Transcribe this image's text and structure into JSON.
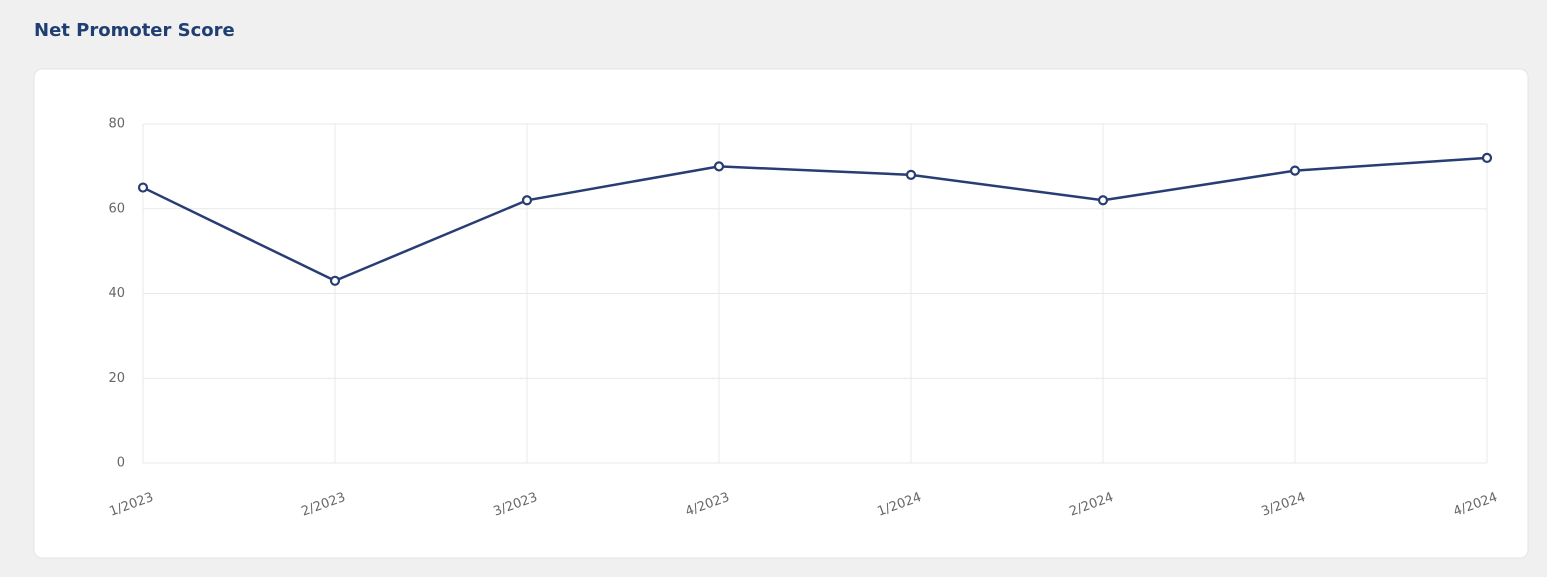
{
  "chart_data": {
    "type": "line",
    "title": "Net Promoter Score",
    "categories": [
      "1/2023",
      "2/2023",
      "3/2023",
      "4/2023",
      "1/2024",
      "2/2024",
      "3/2024",
      "4/2024"
    ],
    "series": [
      {
        "color": "#283d73",
        "values": [
          65,
          43,
          62,
          70,
          68,
          62,
          69,
          72
        ]
      }
    ],
    "ylim": [
      0,
      80
    ],
    "yticks": [
      0,
      20,
      40,
      60,
      80
    ],
    "grid": true
  }
}
